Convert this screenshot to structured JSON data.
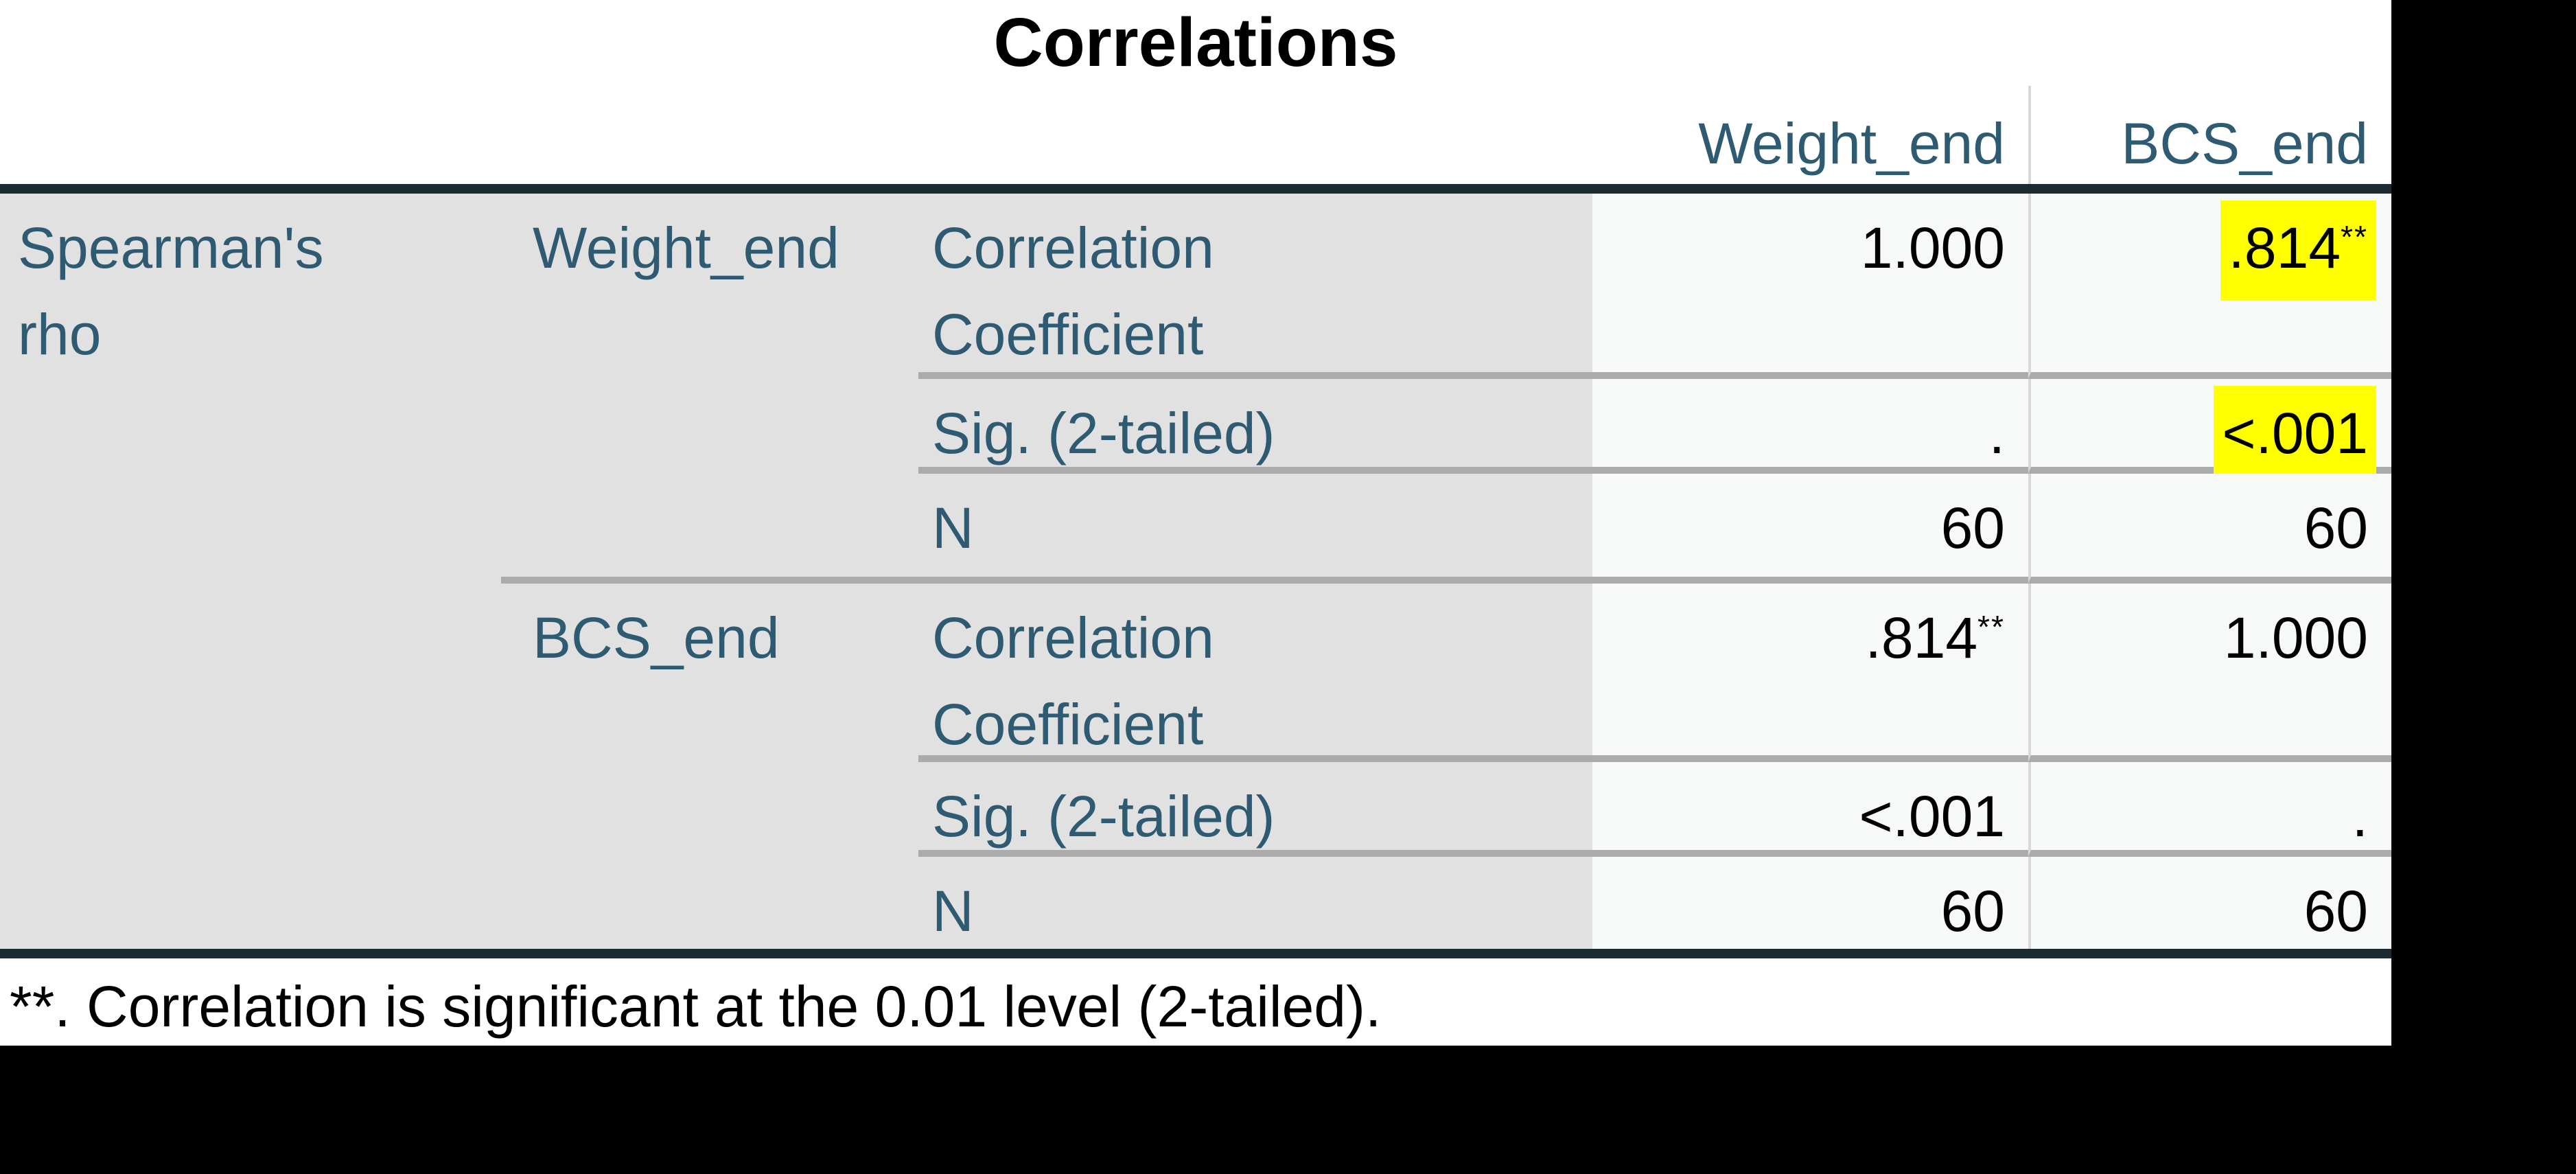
{
  "title": "Correlations",
  "col_headers": [
    "Weight_end",
    "BCS_end"
  ],
  "group_label": "Spearman's rho",
  "blocks": [
    {
      "variable": "Weight_end",
      "rows": [
        {
          "label": "Correlation Coefficient",
          "cells": [
            {
              "text": "1.000",
              "sup": "",
              "highlight": false
            },
            {
              "text": ".814",
              "sup": "**",
              "highlight": true
            }
          ]
        },
        {
          "label": "Sig. (2-tailed)",
          "cells": [
            {
              "text": ".",
              "sup": "",
              "highlight": false
            },
            {
              "text": "<.001",
              "sup": "",
              "highlight": true
            }
          ]
        },
        {
          "label": "N",
          "cells": [
            {
              "text": "60",
              "sup": "",
              "highlight": false
            },
            {
              "text": "60",
              "sup": "",
              "highlight": false
            }
          ]
        }
      ]
    },
    {
      "variable": "BCS_end",
      "rows": [
        {
          "label": "Correlation Coefficient",
          "cells": [
            {
              "text": ".814",
              "sup": "**",
              "highlight": false
            },
            {
              "text": "1.000",
              "sup": "",
              "highlight": false
            }
          ]
        },
        {
          "label": "Sig. (2-tailed)",
          "cells": [
            {
              "text": "<.001",
              "sup": "",
              "highlight": false
            },
            {
              "text": ".",
              "sup": "",
              "highlight": false
            }
          ]
        },
        {
          "label": "N",
          "cells": [
            {
              "text": "60",
              "sup": "",
              "highlight": false
            },
            {
              "text": "60",
              "sup": "",
              "highlight": false
            }
          ]
        }
      ]
    }
  ],
  "footnote": "**. Correlation is significant at the 0.01 level (2-tailed).",
  "colors": {
    "accent-teal": "#2e5a72",
    "highlight": "#ffff00",
    "border-dark": "#1b2a33",
    "divider-gray": "#ababab",
    "divider-light": "#d8d8d8",
    "stub-bg": "#e1e1e1",
    "data-bg": "#f7f8f8",
    "canvas": "#000000"
  }
}
